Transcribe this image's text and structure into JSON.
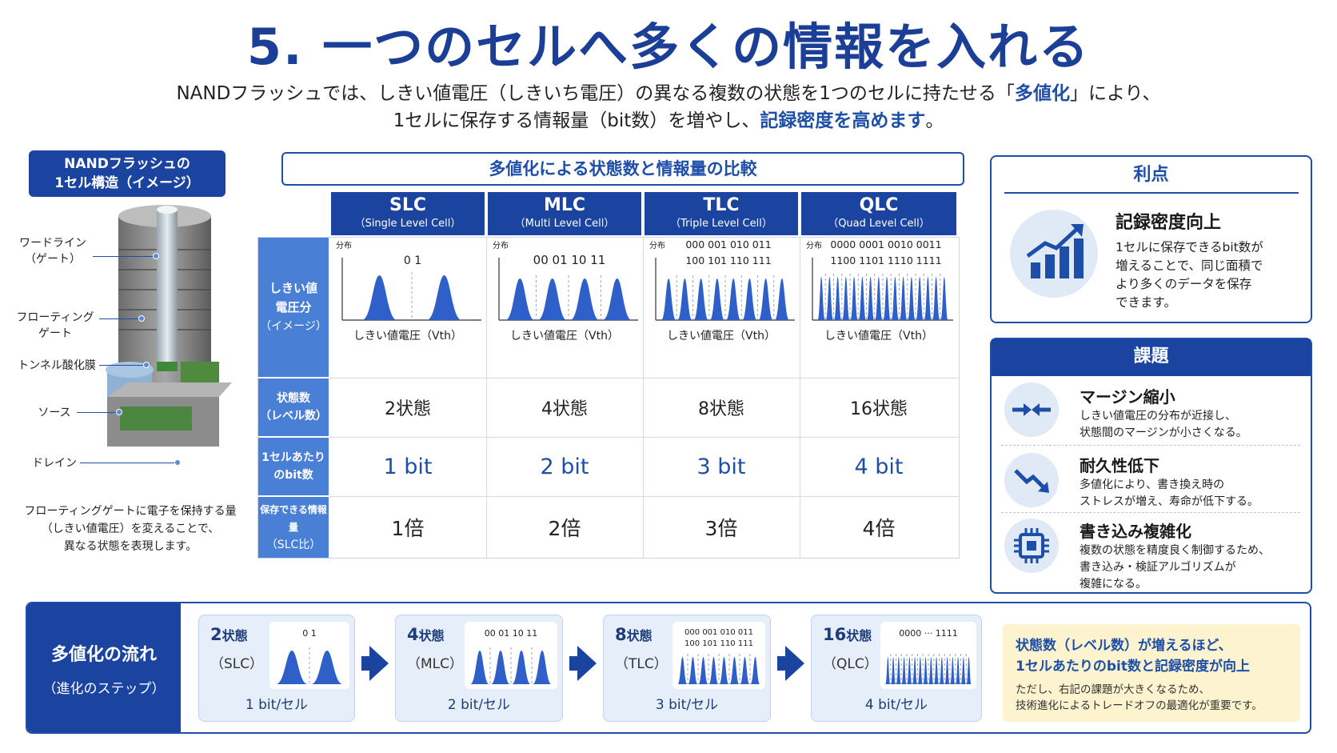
{
  "title": "5. 一つのセルへ多くの情報を入れる",
  "intro": {
    "line1_a": "NANDフラッシュでは、しきい値電圧（しきいち電圧）の異なる複数の状態を1つのセルに持たせる「",
    "line1_hl": "多値化",
    "line1_b": "」により、",
    "line2_a": "1セルに保存する情報量（bit数）を増やし、",
    "line2_hl": "記録密度を高めます",
    "line2_b": "。"
  },
  "cell_structure": {
    "title_l1": "NANDフラッシュの",
    "title_l2": "1セル構造（イメージ）",
    "labels": {
      "wordline_l1": "ワードライン",
      "wordline_l2": "（ゲート）",
      "fg_l1": "フローティング",
      "fg_l2": "ゲート",
      "tunnel": "トンネル酸化膜",
      "source": "ソース",
      "drain": "ドレイン"
    },
    "caption_l1": "フローティングゲートに電子を保持する量",
    "caption_l2": "（しきい値電圧）を変えることで、",
    "caption_l3": "異なる状態を表現します。"
  },
  "comparison": {
    "title": "多値化による状態数と情報量の比較",
    "columns": [
      {
        "name": "SLC",
        "full": "（Single Level Cell）",
        "states": "2状態",
        "bits": "1 bit",
        "multiple": "1倍",
        "peaks": 2,
        "codes_top": "0 1",
        "codes_bottom": ""
      },
      {
        "name": "MLC",
        "full": "（Multi Level Cell）",
        "states": "4状態",
        "bits": "2 bit",
        "multiple": "2倍",
        "peaks": 4,
        "codes_top": "00 01 10 11",
        "codes_bottom": ""
      },
      {
        "name": "TLC",
        "full": "（Triple Level Cell）",
        "states": "8状態",
        "bits": "3 bit",
        "multiple": "3倍",
        "peaks": 8,
        "codes_top": "000 001 010 011",
        "codes_bottom": "100 101 110 111"
      },
      {
        "name": "QLC",
        "full": "（Quad Level Cell）",
        "states": "16状態",
        "bits": "4 bit",
        "multiple": "4倍",
        "peaks": 16,
        "codes_top": "0000 0001 0010 0011",
        "codes_bottom": "1100 1101 1110 1111"
      }
    ],
    "row_heads": {
      "dist_l1": "しきい値",
      "dist_l2": "電圧分",
      "dist_l3": "（イメージ）",
      "states_l1": "状態数",
      "states_l2": "（レベル数）",
      "bits_l1": "1セルあたり",
      "bits_l2": "のbit数",
      "cap_l1": "保存できる情報量",
      "cap_l2": "（SLC比）"
    },
    "axis_y": "分布",
    "axis_x": "しきい値電圧（Vth）"
  },
  "advantage": {
    "title": "利点",
    "heading": "記録密度向上",
    "desc_l1": "1セルに保存できるbit数が",
    "desc_l2": "増えることで、同じ面積で",
    "desc_l3": "より多くのデータを保存",
    "desc_l4": "できます。",
    "icon": "bar-chart-growth-icon"
  },
  "issues": {
    "title": "課題",
    "items": [
      {
        "title": "マージン縮小",
        "desc_l1": "しきい値電圧の分布が近接し、",
        "desc_l2": "状態間のマージンが小さくなる。",
        "desc_l3": "",
        "icon": "arrows-converge-icon"
      },
      {
        "title": "耐久性低下",
        "desc_l1": "多値化により、書き換え時の",
        "desc_l2": "ストレスが増え、寿命が低下する。",
        "desc_l3": "",
        "icon": "trend-down-icon"
      },
      {
        "title": "書き込み複雑化",
        "desc_l1": "複数の状態を精度良く制御するため、",
        "desc_l2": "書き込み・検証アルゴリズムが",
        "desc_l3": "複雑になる。",
        "icon": "chip-icon"
      }
    ]
  },
  "flow": {
    "label_l1": "多値化の流れ",
    "label_l2": "（進化のステップ）",
    "steps": [
      {
        "count": "2",
        "unit": "状態",
        "type": "（SLC）",
        "bits": "1 bit/セル",
        "peaks": 2,
        "codes_l1": "0          1",
        "codes_l2": ""
      },
      {
        "count": "4",
        "unit": "状態",
        "type": "（MLC）",
        "bits": "2 bit/セル",
        "peaks": 4,
        "codes_l1": "00   01   10   11",
        "codes_l2": ""
      },
      {
        "count": "8",
        "unit": "状態",
        "type": "（TLC）",
        "bits": "3 bit/セル",
        "peaks": 8,
        "codes_l1": "000 001 010 011",
        "codes_l2": "100 101 110 111"
      },
      {
        "count": "16",
        "unit": "状態",
        "type": "（QLC）",
        "bits": "4 bit/セル",
        "peaks": 16,
        "codes_l1": "0000   ···   1111",
        "codes_l2": ""
      }
    ],
    "note_l1": "状態数（レベル数）が増えるほど、",
    "note_l2": "1セルあたりのbit数と記録密度が向上",
    "note_l3": "ただし、右記の課題が大きくなるため、",
    "note_l4": "技術進化によるトレードオフの最適化が重要です。"
  },
  "colors": {
    "navy": "#1a44a0",
    "accent": "#1e4fa8",
    "peak": "#2f5fc8",
    "note_bg": "#fdf3cf"
  }
}
